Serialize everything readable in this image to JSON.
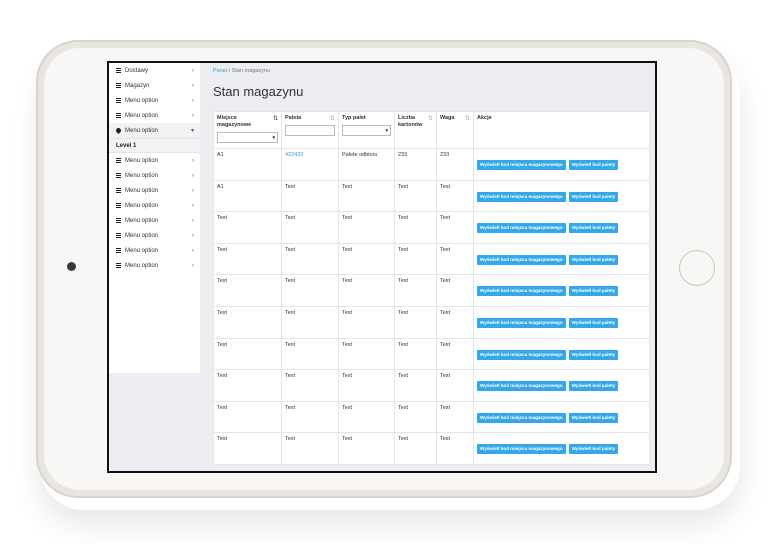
{
  "sidebar": {
    "items": [
      {
        "label": "Dostawy",
        "icon": "list-icon",
        "chevron": "›"
      },
      {
        "label": "Magazyn",
        "icon": "list-icon",
        "chevron": "›"
      },
      {
        "label": "Menu option",
        "icon": "list-icon",
        "chevron": "›"
      },
      {
        "label": "Menu option",
        "icon": "list-icon",
        "chevron": "›"
      },
      {
        "label": "Menu option",
        "icon": "drop-icon",
        "chevron": "▾"
      }
    ],
    "level_label": "Level 1",
    "sub_items": [
      {
        "label": "Menu option",
        "chevron": "›"
      },
      {
        "label": "Menu option",
        "chevron": "›"
      },
      {
        "label": "Menu option",
        "chevron": "›"
      },
      {
        "label": "Menu option",
        "chevron": "›"
      },
      {
        "label": "Menu option",
        "chevron": "›"
      },
      {
        "label": "Menu option",
        "chevron": "›"
      },
      {
        "label": "Menu option",
        "chevron": "›"
      },
      {
        "label": "Menu option",
        "chevron": "›"
      }
    ]
  },
  "breadcrumb": {
    "link": "Panel",
    "separator": "/",
    "current": "Stan magazynu"
  },
  "page_title": "Stan magazynu",
  "table": {
    "columns": [
      {
        "label": "Miejsce magazynowe",
        "sort": "⇅",
        "filter": "select"
      },
      {
        "label": "Paleta",
        "sort": "⇅",
        "filter": "input"
      },
      {
        "label": "Typ palet",
        "sort": "",
        "filter": "select"
      },
      {
        "label": "Liczba kartonów",
        "sort": "⇅",
        "filter": ""
      },
      {
        "label": "Waga",
        "sort": "⇅",
        "filter": ""
      },
      {
        "label": "Akcje",
        "sort": "",
        "filter": ""
      }
    ],
    "button_labels": {
      "location_code": "Wyświetl kod miejsca magazynowego",
      "pallet_code": "Wyświetl kod palety"
    },
    "rows": [
      [
        "A1",
        "432432",
        "Palete odbioru",
        "233",
        "233"
      ],
      [
        "A1",
        "Text",
        "Text",
        "Text",
        "Text"
      ],
      [
        "Text",
        "Text",
        "Text",
        "Text",
        "Text"
      ],
      [
        "Text",
        "Text",
        "Text",
        "Text",
        "Text"
      ],
      [
        "Text",
        "Text",
        "Text",
        "Text",
        "Text"
      ],
      [
        "Text",
        "Text",
        "Text",
        "Text",
        "Text"
      ],
      [
        "Text",
        "Text",
        "Text",
        "Text",
        "Text"
      ],
      [
        "Text",
        "Text",
        "Text",
        "Text",
        "Text"
      ],
      [
        "Text",
        "Text",
        "Text",
        "Text",
        "Text"
      ],
      [
        "Text",
        "Text",
        "Text",
        "Text",
        "Text"
      ]
    ]
  },
  "colors": {
    "accent": "#33a7ea",
    "link": "#3a9bdc",
    "page_bg": "#ebedf0"
  }
}
